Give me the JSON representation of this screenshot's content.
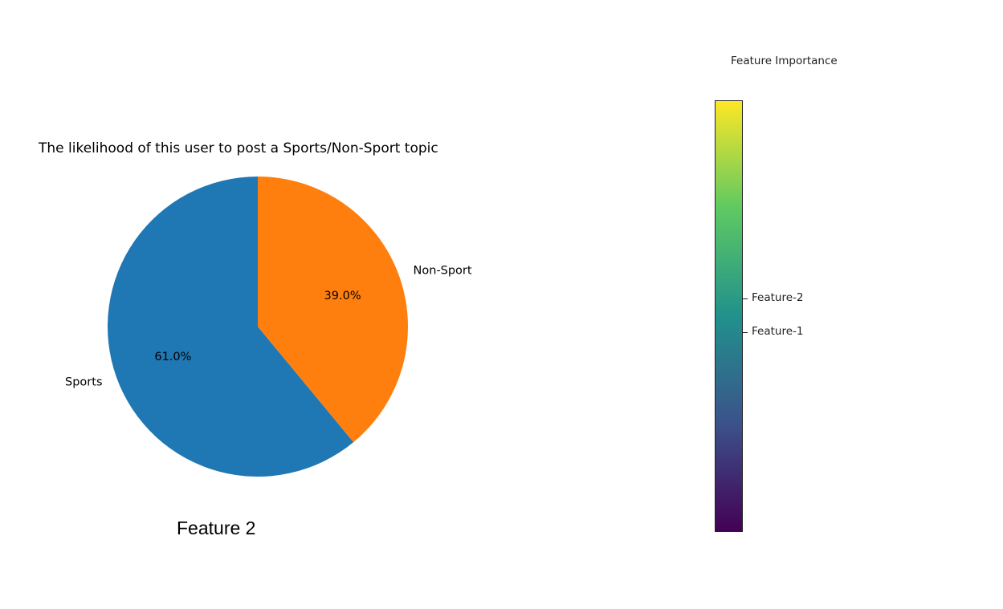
{
  "chart_data": [
    {
      "type": "pie",
      "title": "The likelihood of this user to post a Sports/Non-Sport topic",
      "slices": [
        {
          "label": "Sports",
          "value": 61.0,
          "pct_label": "61.0%",
          "color": "#1f77b4"
        },
        {
          "label": "Non-Sport",
          "value": 39.0,
          "pct_label": "39.0%",
          "color": "#ff7f0e"
        }
      ],
      "start_angle": "top",
      "direction": "counterclockwise"
    },
    {
      "type": "heatmap",
      "title": "Feature Importance",
      "colormap": "viridis",
      "colors": [
        "#440154",
        "#3b528b",
        "#21918c",
        "#5ec962",
        "#fde725"
      ],
      "orientation": "vertical",
      "ticks": [
        {
          "label": "Feature-2",
          "value": 0.54
        },
        {
          "label": "Feature-1",
          "value": 0.46
        }
      ],
      "range": [
        0,
        1
      ]
    }
  ],
  "caption": "Feature 2"
}
